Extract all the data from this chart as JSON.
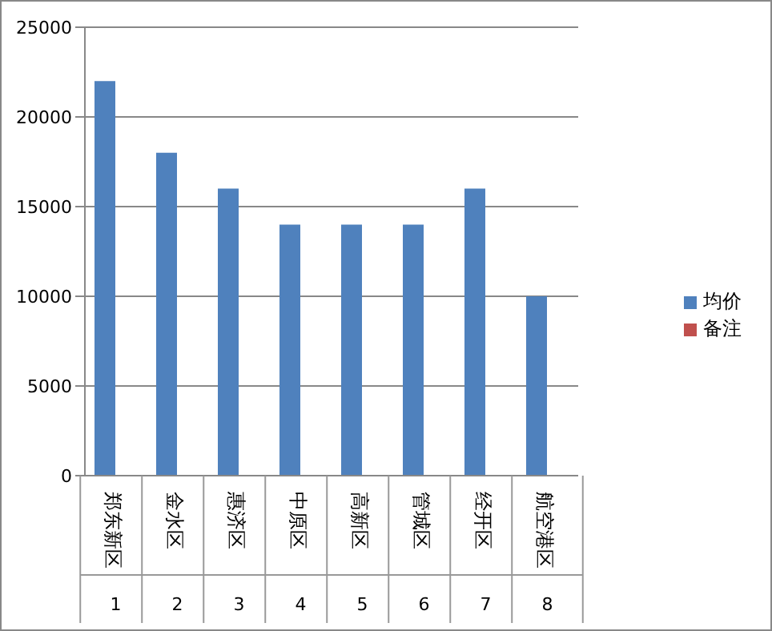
{
  "chart_data": {
    "type": "bar",
    "categories": [
      "郑东新区",
      "金水区",
      "惠济区",
      "中原区",
      "高新区",
      "管城区",
      "经开区",
      "航空港区"
    ],
    "series": [
      {
        "name": "均价",
        "color": "#4f81bd",
        "values": [
          22000,
          18000,
          16000,
          14000,
          14000,
          14000,
          16000,
          10000
        ]
      },
      {
        "name": "备注",
        "color": "#c0504d",
        "values": [
          null,
          null,
          null,
          null,
          null,
          null,
          null,
          null
        ]
      }
    ],
    "annotations": [
      "1",
      "2",
      "3",
      "4",
      "5",
      "6",
      "7",
      "8"
    ],
    "ylim": [
      0,
      25000
    ],
    "yticks": [
      0,
      5000,
      10000,
      15000,
      20000,
      25000
    ],
    "grid": "y",
    "legend": "right"
  }
}
